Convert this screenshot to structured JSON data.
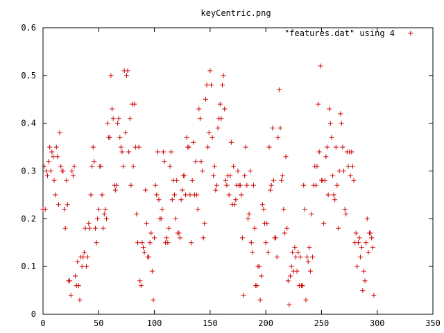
{
  "chart_data": {
    "type": "scatter",
    "title": "keyCentric.png",
    "xlabel": "",
    "ylabel": "",
    "xlim": [
      0,
      350
    ],
    "ylim": [
      0,
      0.6
    ],
    "x_ticks": [
      0,
      50,
      100,
      150,
      200,
      250,
      300,
      350
    ],
    "y_ticks": [
      0,
      0.1,
      0.2,
      0.3,
      0.4,
      0.5,
      0.6
    ],
    "x_tick_labels": [
      "0",
      "50",
      "100",
      "150",
      "200",
      "250",
      "300",
      "350"
    ],
    "y_tick_labels": [
      "0",
      "0.1",
      "0.2",
      "0.3",
      "0.4",
      "0.5",
      "0.6"
    ],
    "legend_position": "top-right",
    "grid": false,
    "series": [
      {
        "name": "\"features.dat\" using 4",
        "marker": "+",
        "color": "#cc0000",
        "points": [
          [
            0,
            0.22
          ],
          [
            1,
            0.31
          ],
          [
            2,
            0.22
          ],
          [
            3,
            0.3
          ],
          [
            4,
            0.29
          ],
          [
            5,
            0.32
          ],
          [
            6,
            0.35
          ],
          [
            7,
            0.3
          ],
          [
            8,
            0.34
          ],
          [
            9,
            0.33
          ],
          [
            10,
            0.28
          ],
          [
            11,
            0.25
          ],
          [
            12,
            0.35
          ],
          [
            13,
            0.33
          ],
          [
            14,
            0.23
          ],
          [
            15,
            0.38
          ],
          [
            16,
            0.31
          ],
          [
            17,
            0.3
          ],
          [
            18,
            0.3
          ],
          [
            19,
            0.22
          ],
          [
            20,
            0.18
          ],
          [
            21,
            0.28
          ],
          [
            22,
            0.23
          ],
          [
            23,
            0.07
          ],
          [
            24,
            0.07
          ],
          [
            25,
            0.04
          ],
          [
            26,
            0.3
          ],
          [
            27,
            0.29
          ],
          [
            28,
            0.31
          ],
          [
            29,
            0.08
          ],
          [
            30,
            0.06
          ],
          [
            31,
            0.11
          ],
          [
            32,
            0.06
          ],
          [
            33,
            0.03
          ],
          [
            34,
            0.12
          ],
          [
            35,
            0.1
          ],
          [
            36,
            0.12
          ],
          [
            37,
            0.13
          ],
          [
            38,
            0.18
          ],
          [
            39,
            0.1
          ],
          [
            40,
            0.12
          ],
          [
            41,
            0.19
          ],
          [
            42,
            0.18
          ],
          [
            43,
            0.25
          ],
          [
            44,
            0.31
          ],
          [
            45,
            0.35
          ],
          [
            46,
            0.32
          ],
          [
            47,
            0.18
          ],
          [
            48,
            0.15
          ],
          [
            49,
            0.2
          ],
          [
            50,
            0.22
          ],
          [
            51,
            0.31
          ],
          [
            52,
            0.31
          ],
          [
            53,
            0.25
          ],
          [
            54,
            0.18
          ],
          [
            55,
            0.21
          ],
          [
            56,
            0.22
          ],
          [
            57,
            0.2
          ],
          [
            58,
            0.4
          ],
          [
            59,
            0.37
          ],
          [
            60,
            0.37
          ],
          [
            61,
            0.5
          ],
          [
            62,
            0.43
          ],
          [
            63,
            0.41
          ],
          [
            64,
            0.27
          ],
          [
            65,
            0.26
          ],
          [
            66,
            0.27
          ],
          [
            67,
            0.4
          ],
          [
            68,
            0.41
          ],
          [
            69,
            0.37
          ],
          [
            70,
            0.35
          ],
          [
            71,
            0.34
          ],
          [
            72,
            0.31
          ],
          [
            73,
            0.51
          ],
          [
            74,
            0.38
          ],
          [
            75,
            0.5
          ],
          [
            76,
            0.51
          ],
          [
            77,
            0.34
          ],
          [
            78,
            0.41
          ],
          [
            79,
            0.27
          ],
          [
            80,
            0.44
          ],
          [
            81,
            0.31
          ],
          [
            82,
            0.44
          ],
          [
            83,
            0.35
          ],
          [
            84,
            0.21
          ],
          [
            85,
            0.15
          ],
          [
            86,
            0.35
          ],
          [
            87,
            0.07
          ],
          [
            88,
            0.06
          ],
          [
            89,
            0.15
          ],
          [
            90,
            0.14
          ],
          [
            91,
            0.13
          ],
          [
            92,
            0.26
          ],
          [
            93,
            0.19
          ],
          [
            94,
            0.12
          ],
          [
            95,
            0.12
          ],
          [
            96,
            0.15
          ],
          [
            97,
            0.17
          ],
          [
            98,
            0.09
          ],
          [
            99,
            0.03
          ],
          [
            100,
            0.16
          ],
          [
            101,
            0.27
          ],
          [
            102,
            0.25
          ],
          [
            103,
            0.34
          ],
          [
            104,
            0.24
          ],
          [
            105,
            0.2
          ],
          [
            106,
            0.2
          ],
          [
            107,
            0.22
          ],
          [
            108,
            0.34
          ],
          [
            109,
            0.32
          ],
          [
            110,
            0.15
          ],
          [
            111,
            0.16
          ],
          [
            112,
            0.15
          ],
          [
            113,
            0.18
          ],
          [
            114,
            0.31
          ],
          [
            115,
            0.34
          ],
          [
            116,
            0.24
          ],
          [
            117,
            0.28
          ],
          [
            118,
            0.25
          ],
          [
            119,
            0.2
          ],
          [
            120,
            0.28
          ],
          [
            121,
            0.17
          ],
          [
            122,
            0.17
          ],
          [
            123,
            0.16
          ],
          [
            124,
            0.24
          ],
          [
            125,
            0.26
          ],
          [
            126,
            0.29
          ],
          [
            127,
            0.29
          ],
          [
            128,
            0.25
          ],
          [
            129,
            0.37
          ],
          [
            130,
            0.35
          ],
          [
            131,
            0.35
          ],
          [
            132,
            0.25
          ],
          [
            133,
            0.15
          ],
          [
            134,
            0.28
          ],
          [
            135,
            0.36
          ],
          [
            136,
            0.25
          ],
          [
            137,
            0.32
          ],
          [
            138,
            0.25
          ],
          [
            139,
            0.22
          ],
          [
            140,
            0.43
          ],
          [
            141,
            0.41
          ],
          [
            142,
            0.32
          ],
          [
            143,
            0.3
          ],
          [
            144,
            0.16
          ],
          [
            145,
            0.19
          ],
          [
            146,
            0.45
          ],
          [
            147,
            0.48
          ],
          [
            148,
            0.35
          ],
          [
            149,
            0.38
          ],
          [
            150,
            0.51
          ],
          [
            151,
            0.48
          ],
          [
            152,
            0.37
          ],
          [
            153,
            0.29
          ],
          [
            154,
            0.31
          ],
          [
            155,
            0.26
          ],
          [
            156,
            0.27
          ],
          [
            157,
            0.39
          ],
          [
            158,
            0.41
          ],
          [
            159,
            0.44
          ],
          [
            160,
            0.41
          ],
          [
            161,
            0.48
          ],
          [
            162,
            0.5
          ],
          [
            163,
            0.43
          ],
          [
            164,
            0.28
          ],
          [
            165,
            0.27
          ],
          [
            166,
            0.29
          ],
          [
            167,
            0.25
          ],
          [
            168,
            0.29
          ],
          [
            169,
            0.36
          ],
          [
            170,
            0.23
          ],
          [
            171,
            0.31
          ],
          [
            172,
            0.23
          ],
          [
            173,
            0.24
          ],
          [
            174,
            0.27
          ],
          [
            175,
            0.3
          ],
          [
            176,
            0.27
          ],
          [
            177,
            0.27
          ],
          [
            178,
            0.25
          ],
          [
            179,
            0.16
          ],
          [
            180,
            0.04
          ],
          [
            181,
            0.29
          ],
          [
            182,
            0.35
          ],
          [
            183,
            0.27
          ],
          [
            184,
            0.2
          ],
          [
            185,
            0.21
          ],
          [
            186,
            0.3
          ],
          [
            187,
            0.15
          ],
          [
            188,
            0.13
          ],
          [
            189,
            0.27
          ],
          [
            190,
            0.18
          ],
          [
            191,
            0.06
          ],
          [
            192,
            0.06
          ],
          [
            193,
            0.1
          ],
          [
            194,
            0.1
          ],
          [
            195,
            0.03
          ],
          [
            196,
            0.08
          ],
          [
            197,
            0.23
          ],
          [
            198,
            0.22
          ],
          [
            199,
            0.19
          ],
          [
            200,
            0.15
          ],
          [
            201,
            0.19
          ],
          [
            202,
            0.13
          ],
          [
            203,
            0.35
          ],
          [
            204,
            0.26
          ],
          [
            205,
            0.27
          ],
          [
            206,
            0.39
          ],
          [
            207,
            0.28
          ],
          [
            208,
            0.16
          ],
          [
            209,
            0.16
          ],
          [
            210,
            0.12
          ],
          [
            211,
            0.37
          ],
          [
            212,
            0.47
          ],
          [
            213,
            0.39
          ],
          [
            214,
            0.28
          ],
          [
            215,
            0.29
          ],
          [
            216,
            0.22
          ],
          [
            217,
            0.17
          ],
          [
            218,
            0.33
          ],
          [
            219,
            0.18
          ],
          [
            220,
            0.07
          ],
          [
            221,
            0.02
          ],
          [
            222,
            0.08
          ],
          [
            223,
            0.1
          ],
          [
            224,
            0.13
          ],
          [
            225,
            0.09
          ],
          [
            226,
            0.14
          ],
          [
            227,
            0.12
          ],
          [
            228,
            0.09
          ],
          [
            229,
            0.13
          ],
          [
            230,
            0.06
          ],
          [
            231,
            0.12
          ],
          [
            232,
            0.06
          ],
          [
            233,
            0.06
          ],
          [
            234,
            0.27
          ],
          [
            235,
            0.22
          ],
          [
            236,
            0.03
          ],
          [
            237,
            0.12
          ],
          [
            238,
            0.11
          ],
          [
            239,
            0.14
          ],
          [
            240,
            0.09
          ],
          [
            241,
            0.21
          ],
          [
            242,
            0.12
          ],
          [
            243,
            0.27
          ],
          [
            244,
            0.31
          ],
          [
            245,
            0.27
          ],
          [
            246,
            0.31
          ],
          [
            247,
            0.44
          ],
          [
            248,
            0.34
          ],
          [
            249,
            0.52
          ],
          [
            250,
            0.28
          ],
          [
            251,
            0.28
          ],
          [
            252,
            0.19
          ],
          [
            253,
            0.28
          ],
          [
            254,
            0.33
          ],
          [
            255,
            0.35
          ],
          [
            256,
            0.25
          ],
          [
            257,
            0.43
          ],
          [
            258,
            0.4
          ],
          [
            259,
            0.37
          ],
          [
            260,
            0.29
          ],
          [
            261,
            0.25
          ],
          [
            262,
            0.24
          ],
          [
            263,
            0.35
          ],
          [
            264,
            0.27
          ],
          [
            265,
            0.18
          ],
          [
            266,
            0.3
          ],
          [
            267,
            0.42
          ],
          [
            268,
            0.4
          ],
          [
            269,
            0.35
          ],
          [
            270,
            0.3
          ],
          [
            271,
            0.22
          ],
          [
            272,
            0.21
          ],
          [
            273,
            0.34
          ],
          [
            274,
            0.31
          ],
          [
            275,
            0.34
          ],
          [
            276,
            0.29
          ],
          [
            277,
            0.34
          ],
          [
            278,
            0.31
          ],
          [
            279,
            0.28
          ],
          [
            280,
            0.15
          ],
          [
            281,
            0.17
          ],
          [
            282,
            0.1
          ],
          [
            283,
            0.15
          ],
          [
            284,
            0.16
          ],
          [
            285,
            0.12
          ],
          [
            286,
            0.14
          ],
          [
            287,
            0.05
          ],
          [
            288,
            0.09
          ],
          [
            289,
            0.07
          ],
          [
            290,
            0.15
          ],
          [
            291,
            0.2
          ],
          [
            292,
            0.13
          ],
          [
            293,
            0.17
          ],
          [
            294,
            0.17
          ],
          [
            295,
            0.16
          ],
          [
            296,
            0.14
          ],
          [
            297,
            0.04
          ]
        ]
      }
    ]
  }
}
